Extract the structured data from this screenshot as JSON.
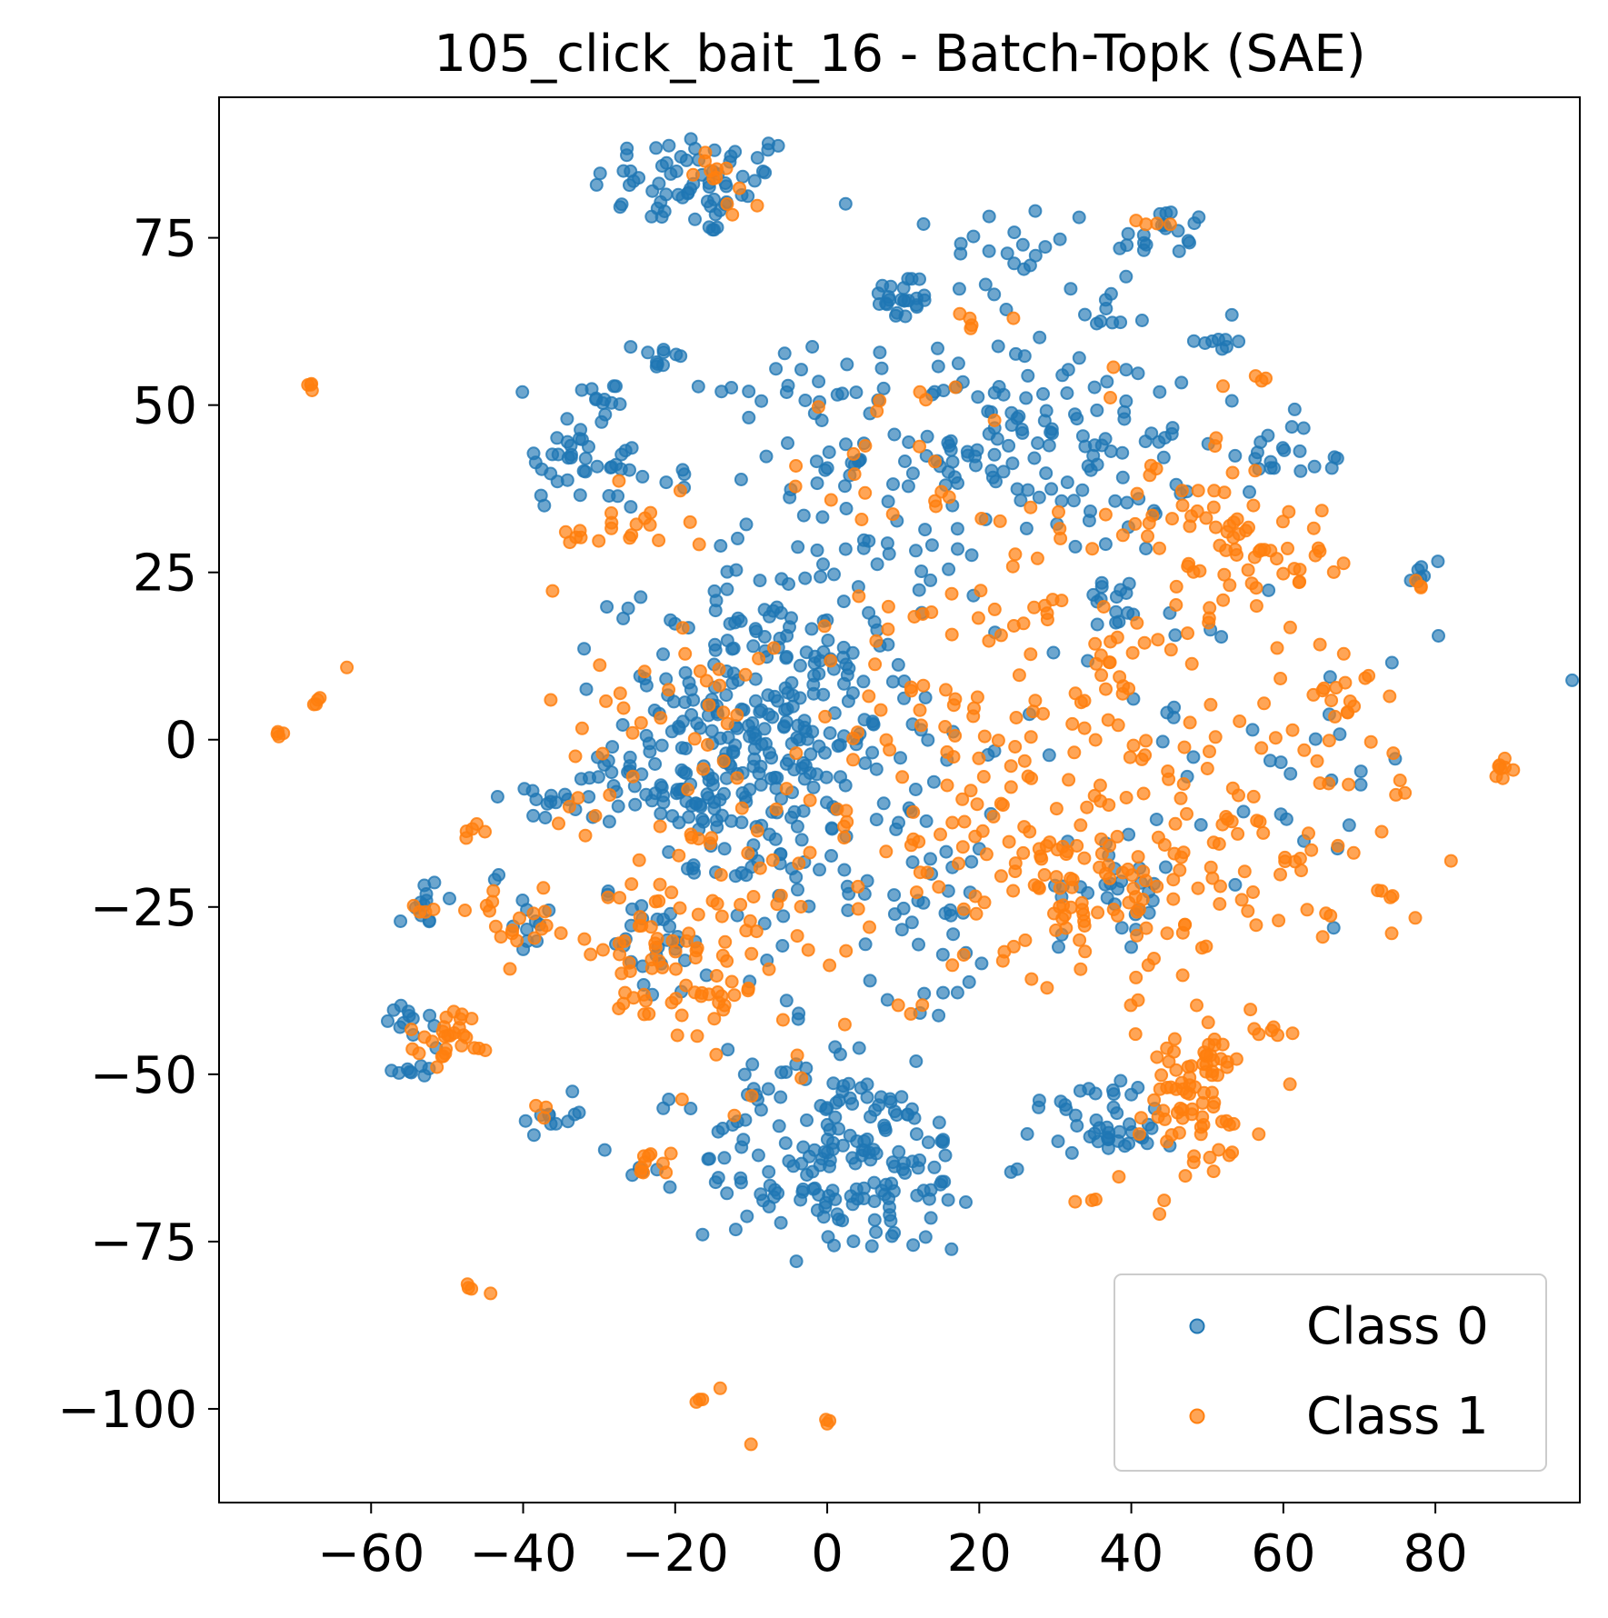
{
  "chart_data": {
    "type": "scatter",
    "title": "105_click_bait_16 - Batch-Topk (SAE)",
    "xlabel": "",
    "ylabel": "",
    "xlim": [
      -80,
      99
    ],
    "ylim": [
      -114,
      96
    ],
    "xticks": [
      -60,
      -40,
      -20,
      0,
      20,
      40,
      60,
      80
    ],
    "yticks": [
      75,
      50,
      25,
      0,
      -25,
      -50,
      -75,
      -100
    ],
    "grid": false,
    "legend_position": "bottom-right",
    "series": [
      {
        "name": "Class 0",
        "color": "#1f77b4",
        "opacity": 0.65,
        "clusters": [
          {
            "center": [
              -17,
              83
            ],
            "spread": [
              7,
              4
            ],
            "count": 70
          },
          {
            "center": [
              -6,
              54
            ],
            "spread": [
              6,
              3
            ],
            "count": 16
          },
          {
            "center": [
              -22,
              57
            ],
            "spread": [
              1.5,
              1.5
            ],
            "count": 10
          },
          {
            "center": [
              -30,
              51
            ],
            "spread": [
              2.5,
              2
            ],
            "count": 12
          },
          {
            "center": [
              -34,
              42
            ],
            "spread": [
              3,
              4
            ],
            "count": 28
          },
          {
            "center": [
              -27,
              40
            ],
            "spread": [
              1.5,
              3
            ],
            "count": 10
          },
          {
            "center": [
              -20,
              39
            ],
            "spread": [
              2,
              1
            ],
            "count": 5
          },
          {
            "center": [
              10,
              66
            ],
            "spread": [
              2,
              2
            ],
            "count": 24
          },
          {
            "center": [
              25,
              73
            ],
            "spread": [
              5,
              4
            ],
            "count": 22
          },
          {
            "center": [
              44,
              75
            ],
            "spread": [
              3,
              2.5
            ],
            "count": 20
          },
          {
            "center": [
              36,
              63
            ],
            "spread": [
              1.5,
              1.5
            ],
            "count": 8
          },
          {
            "center": [
              52,
              60
            ],
            "spread": [
              2,
              1.5
            ],
            "count": 8
          },
          {
            "center": [
              25,
              44
            ],
            "spread": [
              12,
              8
            ],
            "count": 160
          },
          {
            "center": [
              38,
              20
            ],
            "spread": [
              2.5,
              2.5
            ],
            "count": 14
          },
          {
            "center": [
              58,
              44
            ],
            "spread": [
              3,
              3
            ],
            "count": 14
          },
          {
            "center": [
              64,
              41
            ],
            "spread": [
              2.5,
              1
            ],
            "count": 6
          },
          {
            "center": [
              78,
              24
            ],
            "spread": [
              0.6,
              1
            ],
            "count": 6
          },
          {
            "center": [
              -8,
              0
            ],
            "spread": [
              10,
              12
            ],
            "count": 330
          },
          {
            "center": [
              -1,
              28
            ],
            "spread": [
              9,
              10
            ],
            "count": 40
          },
          {
            "center": [
              -27,
              -5
            ],
            "spread": [
              2.5,
              2
            ],
            "count": 14
          },
          {
            "center": [
              -37,
              -10
            ],
            "spread": [
              2.5,
              1.5
            ],
            "count": 12
          },
          {
            "center": [
              -19,
              -8
            ],
            "spread": [
              4,
              3
            ],
            "count": 20
          },
          {
            "center": [
              -40,
              -25
            ],
            "spread": [
              2,
              4
            ],
            "count": 12
          },
          {
            "center": [
              -53,
              -25
            ],
            "spread": [
              1.5,
              2
            ],
            "count": 12
          },
          {
            "center": [
              -54,
              -42
            ],
            "spread": [
              2,
              2
            ],
            "count": 12
          },
          {
            "center": [
              -55,
              -49
            ],
            "spread": [
              1.5,
              1
            ],
            "count": 8
          },
          {
            "center": [
              -36,
              -56
            ],
            "spread": [
              1.5,
              1
            ],
            "count": 10
          },
          {
            "center": [
              -22,
              -30
            ],
            "spread": [
              3,
              3
            ],
            "count": 20
          },
          {
            "center": [
              2,
              -63
            ],
            "spread": [
              10,
              7
            ],
            "count": 190
          },
          {
            "center": [
              35,
              -56
            ],
            "spread": [
              5,
              3
            ],
            "count": 32
          },
          {
            "center": [
              41,
              -59
            ],
            "spread": [
              2.5,
              1.5
            ],
            "count": 12
          },
          {
            "center": [
              39,
              -22
            ],
            "spread": [
              4,
              3
            ],
            "count": 26
          },
          {
            "center": [
              13,
              -25
            ],
            "spread": [
              6,
              7
            ],
            "count": 30
          },
          {
            "center": [
              45,
              2
            ],
            "spread": [
              18,
              16
            ],
            "count": 40
          },
          {
            "center": [
              62,
              -5
            ],
            "spread": [
              7,
              10
            ],
            "count": 14
          },
          {
            "center": [
              0,
              -38
            ],
            "spread": [
              12,
              10
            ],
            "count": 26
          }
        ]
      },
      {
        "name": "Class 1",
        "color": "#ff7f0e",
        "opacity": 0.7,
        "clusters": [
          {
            "center": [
              -68,
              53
            ],
            "spread": [
              0.3,
              0.3
            ],
            "count": 4
          },
          {
            "center": [
              -72,
              1
            ],
            "spread": [
              0.3,
              0.3
            ],
            "count": 4
          },
          {
            "center": [
              -67,
              6
            ],
            "spread": [
              0.3,
              0.3
            ],
            "count": 4
          },
          {
            "center": [
              -63,
              11
            ],
            "spread": [
              0.2,
              0.2
            ],
            "count": 1
          },
          {
            "center": [
              89,
              -4
            ],
            "spread": [
              1.2,
              0.8
            ],
            "count": 8
          },
          {
            "center": [
              -47,
              -82
            ],
            "spread": [
              0.3,
              0.3
            ],
            "count": 3
          },
          {
            "center": [
              -44,
              -83
            ],
            "spread": [
              0.2,
              0.2
            ],
            "count": 1
          },
          {
            "center": [
              -17,
              -99
            ],
            "spread": [
              0.3,
              0.3
            ],
            "count": 3
          },
          {
            "center": [
              -14,
              -97
            ],
            "spread": [
              0.2,
              0.2
            ],
            "count": 1
          },
          {
            "center": [
              -10,
              -105
            ],
            "spread": [
              0.2,
              0.2
            ],
            "count": 1
          },
          {
            "center": [
              0,
              -102
            ],
            "spread": [
              0.3,
              0.3
            ],
            "count": 3
          },
          {
            "center": [
              -16,
              85
            ],
            "spread": [
              1.5,
              1.5
            ],
            "count": 8
          },
          {
            "center": [
              -12,
              80
            ],
            "spread": [
              2,
              1
            ],
            "count": 4
          },
          {
            "center": [
              42,
              77
            ],
            "spread": [
              2,
              1
            ],
            "count": 4
          },
          {
            "center": [
              20,
              63
            ],
            "spread": [
              2,
              1
            ],
            "count": 5
          },
          {
            "center": [
              57,
              54
            ],
            "spread": [
              1,
              0.8
            ],
            "count": 3
          },
          {
            "center": [
              -26,
              33
            ],
            "spread": [
              4,
              3
            ],
            "count": 16
          },
          {
            "center": [
              -33,
              31
            ],
            "spread": [
              1,
              0.5
            ],
            "count": 4
          },
          {
            "center": [
              50,
              30
            ],
            "spread": [
              6,
              6
            ],
            "count": 50
          },
          {
            "center": [
              62,
              27
            ],
            "spread": [
              4,
              4
            ],
            "count": 20
          },
          {
            "center": [
              78,
              23
            ],
            "spread": [
              0.5,
              0.5
            ],
            "count": 3
          },
          {
            "center": [
              68,
              7
            ],
            "spread": [
              2,
              2
            ],
            "count": 12
          },
          {
            "center": [
              28,
              8
            ],
            "spread": [
              16,
              18
            ],
            "count": 160
          },
          {
            "center": [
              7,
              40
            ],
            "spread": [
              6,
              7
            ],
            "count": 18
          },
          {
            "center": [
              34,
              -20
            ],
            "spread": [
              10,
              8
            ],
            "count": 120
          },
          {
            "center": [
              60,
              -12
            ],
            "spread": [
              10,
              10
            ],
            "count": 60
          },
          {
            "center": [
              -20,
              -35
            ],
            "spread": [
              6,
              8
            ],
            "count": 60
          },
          {
            "center": [
              -20,
              0
            ],
            "spread": [
              8,
              12
            ],
            "count": 40
          },
          {
            "center": [
              -5,
              -20
            ],
            "spread": [
              14,
              10
            ],
            "count": 60
          },
          {
            "center": [
              -42,
              -27
            ],
            "spread": [
              3,
              2.5
            ],
            "count": 18
          },
          {
            "center": [
              -47,
              -14
            ],
            "spread": [
              1,
              0.8
            ],
            "count": 5
          },
          {
            "center": [
              -53,
              -25
            ],
            "spread": [
              1,
              0.8
            ],
            "count": 4
          },
          {
            "center": [
              -49,
              -44
            ],
            "spread": [
              3,
              2
            ],
            "count": 28
          },
          {
            "center": [
              -23,
              -63
            ],
            "spread": [
              1,
              1
            ],
            "count": 10
          },
          {
            "center": [
              -37,
              -55
            ],
            "spread": [
              0.8,
              0.8
            ],
            "count": 3
          },
          {
            "center": [
              47,
              -55
            ],
            "spread": [
              5,
              6
            ],
            "count": 70
          },
          {
            "center": [
              51,
              -47
            ],
            "spread": [
              2,
              2
            ],
            "count": 12
          },
          {
            "center": [
              57,
              -43
            ],
            "spread": [
              1.5,
              1.5
            ],
            "count": 6
          },
          {
            "center": [
              34,
              -69
            ],
            "spread": [
              1,
              0.5
            ],
            "count": 3
          },
          {
            "center": [
              2,
              -42
            ],
            "spread": [
              8,
              5
            ],
            "count": 10
          }
        ]
      }
    ]
  }
}
